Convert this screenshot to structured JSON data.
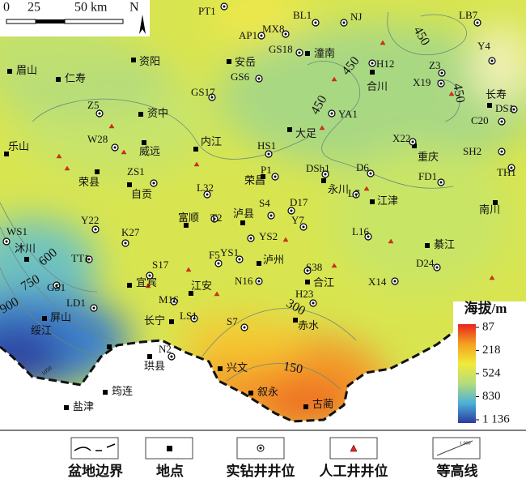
{
  "scale_bar": {
    "labels": [
      "0",
      "25",
      "50 km"
    ],
    "north": "N"
  },
  "places": [
    "眉山",
    "仁寿",
    "资阳",
    "安岳",
    "潼南",
    "合川",
    "长寿",
    "乐山",
    "资中",
    "大足",
    "威远",
    "内江",
    "重庆",
    "荣县",
    "自贡",
    "荣昌",
    "永川",
    "江津",
    "南川",
    "富顺",
    "泸县",
    "綦江",
    "沐川",
    "泸州",
    "宜宾",
    "合江",
    "屏山",
    "江安",
    "长宁",
    "赤水",
    "绥江",
    "珙县",
    "兴文",
    "筠连",
    "叙永",
    "盐津",
    "古蔺"
  ],
  "wells": [
    "PT1",
    "BL1",
    "NJ",
    "LB7",
    "AP1",
    "MX8",
    "GS18",
    "H12",
    "Y4",
    "Z3",
    "X19",
    "GS6",
    "GS17",
    "Z5",
    "YA1",
    "DS1",
    "C20",
    "W28",
    "HS1",
    "X22",
    "SH2",
    "TH1",
    "P1",
    "DSh1",
    "D6",
    "ZS1",
    "FD1",
    "L32",
    "L7",
    "S4",
    "D17",
    "T2",
    "Y7",
    "YS2",
    "Y22",
    "K27",
    "L16",
    "WS1",
    "YS1",
    "F5",
    "TT1",
    "S17",
    "D24",
    "S38",
    "N16",
    "GS1",
    "X14",
    "H23",
    "M16",
    "LD1",
    "LS1",
    "S7",
    "N2"
  ],
  "contour_labels": [
    450,
    450,
    450,
    450,
    600,
    750,
    900,
    300,
    150,
    1050
  ],
  "colorbar": {
    "title": "海拔/m",
    "ticks": [
      87,
      218,
      524,
      830,
      {
        "value": 1136,
        "label": "1 136"
      }
    ]
  },
  "legend": {
    "items": [
      "盆地边界",
      "地点",
      "实钻井井位",
      "人工井井位",
      "等高线"
    ],
    "contour_sample": "1 000"
  }
}
